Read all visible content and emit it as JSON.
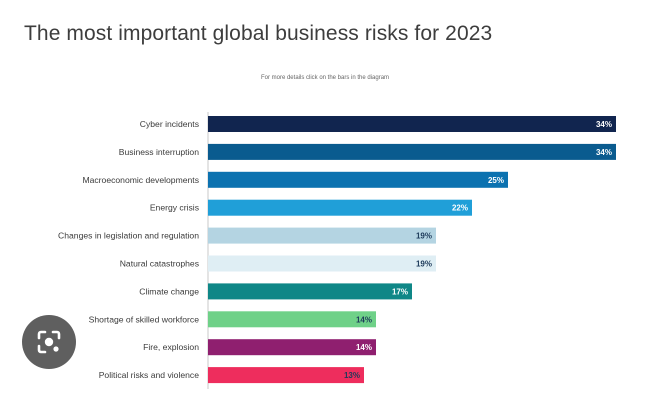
{
  "header": {
    "title": "The most important global business risks for 2023",
    "note": "For more details click on the bars in the diagram"
  },
  "lens_button": {
    "icon": "lens-icon"
  },
  "chart_data": {
    "type": "bar",
    "orientation": "horizontal",
    "title": "The most important global business risks for 2023",
    "categories": [
      "Cyber incidents",
      "Business interruption",
      "Macroeconomic developments",
      "Energy crisis",
      "Changes in legislation and regulation",
      "Natural catastrophes",
      "Climate change",
      "Shortage of skilled workforce",
      "Fire, explosion",
      "Political risks and violence"
    ],
    "values": [
      34,
      34,
      25,
      22,
      19,
      19,
      17,
      14,
      14,
      13
    ],
    "value_labels": [
      "34%",
      "34%",
      "25%",
      "22%",
      "19%",
      "19%",
      "17%",
      "14%",
      "14%",
      "13%"
    ],
    "colors": [
      "#11254f",
      "#0a5b8f",
      "#0c72b0",
      "#209fd8",
      "#b4d4e2",
      "#dfeef4",
      "#0f8787",
      "#6fd188",
      "#8f1f6f",
      "#ee2d5d"
    ],
    "label_colors": [
      "#ffffff",
      "#ffffff",
      "#ffffff",
      "#ffffff",
      "#1d3a5a",
      "#1d3a5a",
      "#ffffff",
      "#1d3a5a",
      "#ffffff",
      "#1d3a5a"
    ],
    "xlim": [
      0,
      34
    ],
    "grid": false,
    "legend": "none"
  }
}
